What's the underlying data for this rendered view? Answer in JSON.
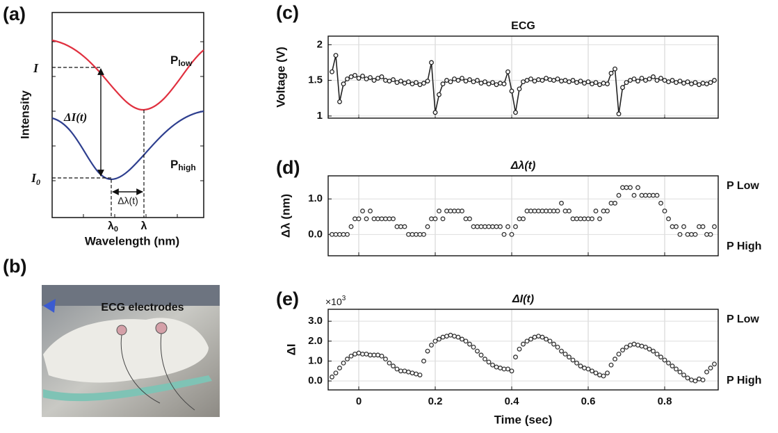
{
  "panels": {
    "a": {
      "label": "(a)",
      "ylabel": "Intensity",
      "xlabel": "Wavelength (nm)",
      "p_low": {
        "label": "P",
        "sub": "low"
      },
      "p_high": {
        "label": "P",
        "sub": "high"
      },
      "i_label": "I",
      "i0_label": {
        "label": "I",
        "sub": "0"
      },
      "delta_i": "ΔI(t)",
      "delta_lambda": "Δλ(t)",
      "lambda0": {
        "label": "λ",
        "sub": "0"
      },
      "lambda": "λ",
      "low_color": "#e0303f",
      "high_color": "#2e3f8f"
    },
    "b": {
      "label": "(b)",
      "caption": "ECG electrodes"
    }
  },
  "chart_data": [
    {
      "type": "line",
      "markers": true,
      "panel_label": "(c)",
      "title": "ECG",
      "title_color": "#111",
      "ylabel": "Voltage (V)",
      "xlim": [
        -0.08,
        0.94
      ],
      "ylim": [
        0.97,
        2.12
      ],
      "yticks": [
        1,
        1.5,
        2
      ],
      "xticks": [
        0,
        0.2,
        0.4,
        0.6,
        0.8
      ],
      "xtick_labels": false,
      "grid": true,
      "x": [
        -0.07,
        -0.06,
        -0.05,
        -0.04,
        -0.03,
        -0.02,
        -0.01,
        0,
        0.01,
        0.02,
        0.03,
        0.04,
        0.05,
        0.06,
        0.07,
        0.08,
        0.09,
        0.1,
        0.11,
        0.12,
        0.13,
        0.14,
        0.15,
        0.16,
        0.17,
        0.18,
        0.19,
        0.2,
        0.21,
        0.22,
        0.23,
        0.24,
        0.25,
        0.26,
        0.27,
        0.28,
        0.29,
        0.3,
        0.31,
        0.32,
        0.33,
        0.34,
        0.35,
        0.36,
        0.37,
        0.38,
        0.39,
        0.4,
        0.41,
        0.42,
        0.43,
        0.44,
        0.45,
        0.46,
        0.47,
        0.48,
        0.49,
        0.5,
        0.51,
        0.52,
        0.53,
        0.54,
        0.55,
        0.56,
        0.57,
        0.58,
        0.59,
        0.6,
        0.61,
        0.62,
        0.63,
        0.64,
        0.65,
        0.66,
        0.67,
        0.68,
        0.69,
        0.7,
        0.71,
        0.72,
        0.73,
        0.74,
        0.75,
        0.76,
        0.77,
        0.78,
        0.79,
        0.8,
        0.81,
        0.82,
        0.83,
        0.84,
        0.85,
        0.86,
        0.87,
        0.88,
        0.89,
        0.9,
        0.91,
        0.92,
        0.93
      ],
      "series": [
        {
          "color": "#222",
          "values": [
            1.62,
            1.85,
            1.2,
            1.45,
            1.52,
            1.55,
            1.57,
            1.53,
            1.56,
            1.52,
            1.54,
            1.5,
            1.53,
            1.55,
            1.5,
            1.49,
            1.51,
            1.47,
            1.49,
            1.46,
            1.48,
            1.45,
            1.47,
            1.44,
            1.46,
            1.49,
            1.75,
            1.05,
            1.3,
            1.45,
            1.5,
            1.48,
            1.52,
            1.5,
            1.53,
            1.49,
            1.51,
            1.48,
            1.5,
            1.46,
            1.48,
            1.45,
            1.47,
            1.44,
            1.46,
            1.45,
            1.62,
            1.35,
            1.05,
            1.38,
            1.48,
            1.5,
            1.52,
            1.49,
            1.51,
            1.5,
            1.53,
            1.51,
            1.5,
            1.52,
            1.49,
            1.5,
            1.48,
            1.5,
            1.47,
            1.49,
            1.46,
            1.48,
            1.45,
            1.47,
            1.44,
            1.46,
            1.45,
            1.6,
            1.66,
            1.03,
            1.4,
            1.47,
            1.5,
            1.52,
            1.49,
            1.53,
            1.5,
            1.52,
            1.55,
            1.5,
            1.53,
            1.5,
            1.48,
            1.5,
            1.47,
            1.49,
            1.46,
            1.48,
            1.45,
            1.47,
            1.44,
            1.46,
            1.45,
            1.47,
            1.5
          ]
        }
      ]
    },
    {
      "type": "scatter",
      "panel_label": "(d)",
      "title": "Δλ(t)",
      "title_color": "#2e3f8f",
      "ylabel": "Δλ (nm)",
      "side_labels": [
        {
          "text": "P Low",
          "color": "#d02a3a"
        },
        {
          "text": "P High",
          "color": "#25307a"
        }
      ],
      "xlim": [
        -0.08,
        0.94
      ],
      "ylim": [
        -0.6,
        1.65
      ],
      "yticks": [
        {
          "value": 0,
          "label": "0.0"
        },
        {
          "value": 1,
          "label": "1.0"
        }
      ],
      "xticks": [
        0,
        0.2,
        0.4,
        0.6,
        0.8
      ],
      "xtick_labels": false,
      "grid": true,
      "x": [
        -0.07,
        -0.06,
        -0.05,
        -0.04,
        -0.03,
        -0.02,
        -0.01,
        0,
        0.01,
        0.02,
        0.03,
        0.04,
        0.05,
        0.06,
        0.07,
        0.08,
        0.09,
        0.1,
        0.11,
        0.12,
        0.13,
        0.14,
        0.15,
        0.16,
        0.17,
        0.18,
        0.19,
        0.2,
        0.21,
        0.22,
        0.23,
        0.24,
        0.25,
        0.26,
        0.27,
        0.28,
        0.29,
        0.3,
        0.31,
        0.32,
        0.33,
        0.34,
        0.35,
        0.36,
        0.37,
        0.38,
        0.39,
        0.4,
        0.41,
        0.42,
        0.43,
        0.44,
        0.45,
        0.46,
        0.47,
        0.48,
        0.49,
        0.5,
        0.51,
        0.52,
        0.53,
        0.54,
        0.55,
        0.56,
        0.57,
        0.58,
        0.59,
        0.6,
        0.61,
        0.62,
        0.63,
        0.64,
        0.65,
        0.66,
        0.67,
        0.68,
        0.69,
        0.7,
        0.71,
        0.72,
        0.73,
        0.74,
        0.75,
        0.76,
        0.77,
        0.78,
        0.79,
        0.8,
        0.81,
        0.82,
        0.83,
        0.84,
        0.85,
        0.86,
        0.87,
        0.88,
        0.89,
        0.9,
        0.91,
        0.92,
        0.93
      ],
      "series": [
        {
          "color": "#333",
          "values": [
            0,
            0,
            0,
            0,
            0,
            0.22,
            0.44,
            0.44,
            0.66,
            0.44,
            0.66,
            0.44,
            0.44,
            0.44,
            0.44,
            0.44,
            0.44,
            0.22,
            0.22,
            0.22,
            0,
            0,
            0,
            0,
            0,
            0.22,
            0.44,
            0.44,
            0.66,
            0.44,
            0.66,
            0.66,
            0.66,
            0.66,
            0.66,
            0.44,
            0.44,
            0.22,
            0.22,
            0.22,
            0.22,
            0.22,
            0.22,
            0.22,
            0.22,
            0,
            0.22,
            0,
            0.22,
            0.44,
            0.44,
            0.66,
            0.66,
            0.66,
            0.66,
            0.66,
            0.66,
            0.66,
            0.66,
            0.66,
            0.88,
            0.66,
            0.66,
            0.44,
            0.44,
            0.44,
            0.44,
            0.44,
            0.44,
            0.66,
            0.44,
            0.66,
            0.66,
            0.88,
            0.88,
            1.1,
            1.32,
            1.32,
            1.32,
            1.1,
            1.32,
            1.1,
            1.1,
            1.1,
            1.1,
            1.1,
            0.88,
            0.66,
            0.44,
            0.22,
            0.22,
            0,
            0.22,
            0,
            0,
            0,
            0.22,
            0.22,
            0,
            0,
            0.22
          ]
        }
      ]
    },
    {
      "type": "scatter",
      "panel_label": "(e)",
      "title": "ΔI(t)",
      "title_color": "#d02a3a",
      "ylabel": "ΔI",
      "multiplier": {
        "base": "×10",
        "exp": "3"
      },
      "side_labels": [
        {
          "text": "P Low",
          "color": "#d02a3a"
        },
        {
          "text": "P High",
          "color": "#25307a"
        }
      ],
      "xlabel": "Time (sec)",
      "xlim": [
        -0.08,
        0.94
      ],
      "ylim": [
        -0.45,
        3.6
      ],
      "yticks": [
        {
          "value": 0,
          "label": "0.0"
        },
        {
          "value": 1,
          "label": "1.0"
        },
        {
          "value": 2,
          "label": "2.0"
        },
        {
          "value": 3,
          "label": "3.0"
        }
      ],
      "xticks": [
        0,
        0.2,
        0.4,
        0.6,
        0.8
      ],
      "xtick_labels": true,
      "grid": true,
      "x": [
        -0.07,
        -0.06,
        -0.05,
        -0.04,
        -0.03,
        -0.02,
        -0.01,
        0,
        0.01,
        0.02,
        0.03,
        0.04,
        0.05,
        0.06,
        0.07,
        0.08,
        0.09,
        0.1,
        0.11,
        0.12,
        0.13,
        0.14,
        0.15,
        0.16,
        0.17,
        0.18,
        0.19,
        0.2,
        0.21,
        0.22,
        0.23,
        0.24,
        0.25,
        0.26,
        0.27,
        0.28,
        0.29,
        0.3,
        0.31,
        0.32,
        0.33,
        0.34,
        0.35,
        0.36,
        0.37,
        0.38,
        0.39,
        0.4,
        0.41,
        0.42,
        0.43,
        0.44,
        0.45,
        0.46,
        0.47,
        0.48,
        0.49,
        0.5,
        0.51,
        0.52,
        0.53,
        0.54,
        0.55,
        0.56,
        0.57,
        0.58,
        0.59,
        0.6,
        0.61,
        0.62,
        0.63,
        0.64,
        0.65,
        0.66,
        0.67,
        0.68,
        0.69,
        0.7,
        0.71,
        0.72,
        0.73,
        0.74,
        0.75,
        0.76,
        0.77,
        0.78,
        0.79,
        0.8,
        0.81,
        0.82,
        0.83,
        0.84,
        0.85,
        0.86,
        0.87,
        0.88,
        0.89,
        0.9,
        0.91,
        0.92,
        0.93
      ],
      "series": [
        {
          "color": "#333",
          "values": [
            0.2,
            0.4,
            0.65,
            0.9,
            1.1,
            1.25,
            1.35,
            1.4,
            1.35,
            1.35,
            1.3,
            1.3,
            1.3,
            1.25,
            1.1,
            0.9,
            0.75,
            0.6,
            0.5,
            0.5,
            0.45,
            0.4,
            0.35,
            0.3,
            1.0,
            1.5,
            1.8,
            2.0,
            2.1,
            2.2,
            2.25,
            2.3,
            2.25,
            2.2,
            2.1,
            2.0,
            1.85,
            1.7,
            1.5,
            1.3,
            1.1,
            0.95,
            0.8,
            0.7,
            0.65,
            0.6,
            0.6,
            0.5,
            1.2,
            1.6,
            1.85,
            2.0,
            2.1,
            2.2,
            2.25,
            2.2,
            2.1,
            2.0,
            1.85,
            1.7,
            1.5,
            1.35,
            1.2,
            1.05,
            0.9,
            0.75,
            0.65,
            0.6,
            0.5,
            0.4,
            0.3,
            0.25,
            0.4,
            0.8,
            1.1,
            1.35,
            1.55,
            1.7,
            1.8,
            1.85,
            1.8,
            1.75,
            1.7,
            1.6,
            1.5,
            1.35,
            1.2,
            1.05,
            0.9,
            0.75,
            0.6,
            0.45,
            0.3,
            0.15,
            0.05,
            0,
            0.1,
            0.05,
            0.45,
            0.65,
            0.85
          ]
        }
      ]
    }
  ]
}
